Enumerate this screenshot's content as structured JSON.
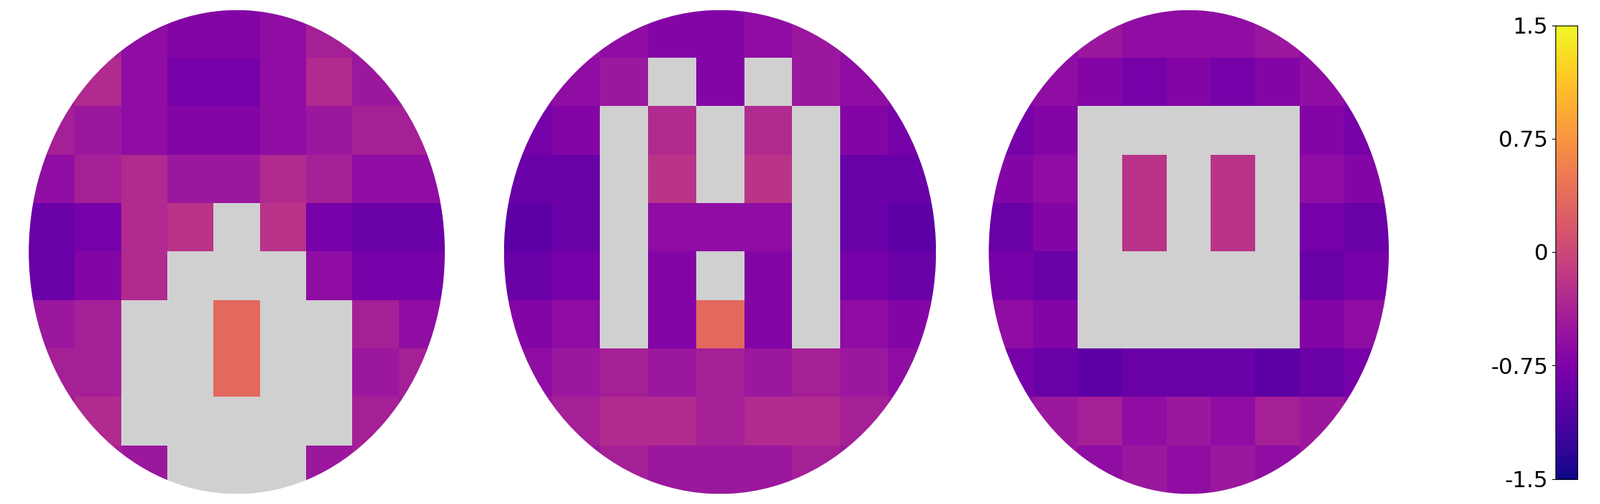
{
  "chart_data": {
    "type": "heatmap",
    "color": "plasma",
    "tick_labels": false,
    "slices": [
      {
        "cells": [
          [
            -0.5,
            -0.4,
            -0.6,
            -0.7,
            -0.7,
            -0.6,
            -0.4,
            -0.5,
            -0.5
          ],
          [
            -0.5,
            -0.3,
            -0.6,
            -0.8,
            -0.8,
            -0.6,
            -0.3,
            -0.5,
            -0.5
          ],
          [
            -0.4,
            -0.5,
            -0.6,
            -0.7,
            -0.7,
            -0.6,
            -0.5,
            -0.4,
            -0.4
          ],
          [
            -0.6,
            -0.4,
            -0.3,
            -0.5,
            -0.5,
            -0.3,
            -0.4,
            -0.6,
            -0.6
          ],
          [
            -0.9,
            -0.8,
            -0.3,
            -0.2,
            null,
            -0.2,
            -0.8,
            -0.9,
            -0.9
          ],
          [
            -0.9,
            -0.7,
            -0.3,
            null,
            null,
            null,
            -0.6,
            -0.8,
            -0.8
          ],
          [
            -0.5,
            -0.4,
            null,
            null,
            0.35,
            null,
            null,
            -0.4,
            -0.6
          ],
          [
            -0.4,
            -0.4,
            null,
            null,
            0.35,
            null,
            null,
            -0.5,
            -0.4
          ],
          [
            -0.5,
            -0.3,
            null,
            null,
            null,
            null,
            null,
            -0.4,
            -0.5
          ],
          [
            -0.5,
            -0.4,
            -0.5,
            null,
            null,
            null,
            -0.5,
            -0.4,
            -0.5
          ]
        ]
      },
      {
        "cells": [
          [
            -0.6,
            -0.5,
            -0.6,
            -0.7,
            -0.7,
            -0.6,
            -0.5,
            -0.6,
            -0.6
          ],
          [
            -0.7,
            -0.6,
            -0.5,
            null,
            -0.7,
            null,
            -0.5,
            -0.6,
            -0.7
          ],
          [
            -0.8,
            -0.7,
            null,
            -0.3,
            null,
            -0.3,
            null,
            -0.7,
            -0.8
          ],
          [
            -0.9,
            -0.9,
            null,
            -0.2,
            null,
            -0.2,
            null,
            -0.9,
            -0.9
          ],
          [
            -1.0,
            -0.9,
            null,
            -0.6,
            -0.6,
            -0.6,
            null,
            -0.9,
            -1.0
          ],
          [
            -0.9,
            -0.8,
            null,
            -0.7,
            null,
            -0.7,
            null,
            -0.8,
            -0.9
          ],
          [
            -0.7,
            -0.6,
            null,
            -0.7,
            0.35,
            -0.7,
            null,
            -0.6,
            -0.7
          ],
          [
            -0.6,
            -0.5,
            -0.4,
            -0.5,
            -0.4,
            -0.5,
            -0.4,
            -0.5,
            -0.6
          ],
          [
            -0.5,
            -0.4,
            -0.3,
            -0.3,
            -0.4,
            -0.3,
            -0.3,
            -0.4,
            -0.5
          ],
          [
            -0.6,
            -0.5,
            -0.4,
            -0.5,
            -0.5,
            -0.5,
            -0.4,
            -0.5,
            -0.6
          ]
        ]
      },
      {
        "cells": [
          [
            -0.6,
            -0.6,
            -0.5,
            -0.6,
            -0.6,
            -0.6,
            -0.5,
            -0.6,
            -0.6
          ],
          [
            -0.7,
            -0.6,
            -0.7,
            -0.8,
            -0.7,
            -0.8,
            -0.7,
            -0.6,
            -0.7
          ],
          [
            -0.8,
            -0.7,
            null,
            null,
            null,
            null,
            null,
            -0.7,
            -0.8
          ],
          [
            -0.7,
            -0.6,
            null,
            -0.2,
            null,
            -0.2,
            null,
            -0.6,
            -0.7
          ],
          [
            -0.9,
            -0.7,
            null,
            -0.2,
            null,
            -0.2,
            null,
            -0.8,
            -0.9
          ],
          [
            -0.8,
            -0.9,
            null,
            null,
            null,
            null,
            null,
            -0.9,
            -0.8
          ],
          [
            -0.6,
            -0.7,
            null,
            null,
            null,
            null,
            null,
            -0.7,
            -0.6
          ],
          [
            -0.8,
            -0.9,
            -1.0,
            -0.9,
            -0.9,
            -0.9,
            -1.0,
            -0.9,
            -0.8
          ],
          [
            -0.6,
            -0.5,
            -0.4,
            -0.6,
            -0.5,
            -0.6,
            -0.4,
            -0.5,
            -0.6
          ],
          [
            -0.6,
            -0.5,
            -0.6,
            -0.5,
            -0.6,
            -0.5,
            -0.6,
            -0.5,
            -0.6
          ]
        ]
      }
    ],
    "colorbar": {
      "range": [
        -1.5,
        1.5
      ],
      "ticks": [
        -1.5,
        -0.75,
        0,
        0.75,
        1.5
      ]
    }
  }
}
